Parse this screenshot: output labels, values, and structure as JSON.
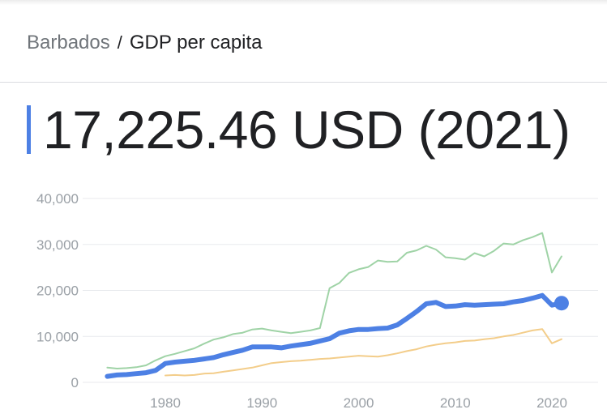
{
  "breadcrumb": {
    "country": "Barbados",
    "separator": "/",
    "metric": "GDP per capita"
  },
  "headline": {
    "value": "17,225.46 USD (2021)"
  },
  "colors": {
    "primary_series": "#4d80e4",
    "upper_series": "#9fd3a6",
    "lower_series": "#f3cd8a",
    "accent": "#4d80e4",
    "grid": "#e8eaed",
    "tick_text": "#9aa0a6"
  },
  "chart_data": {
    "type": "line",
    "title": "",
    "xlabel": "",
    "ylabel": "",
    "xlim": [
      1973,
      2022
    ],
    "ylim": [
      0,
      40000
    ],
    "x_ticks": [
      1980,
      1990,
      2000,
      2010,
      2020
    ],
    "x_tick_labels": [
      "1980",
      "1990",
      "2000",
      "2010",
      "2020"
    ],
    "y_ticks": [
      0,
      10000,
      20000,
      30000,
      40000
    ],
    "y_tick_labels": [
      "0",
      "10,000",
      "20,000",
      "30,000",
      "40,000"
    ],
    "grid": true,
    "legend": "none",
    "series": [
      {
        "role": "upper",
        "x": [
          1974,
          1975,
          1976,
          1977,
          1978,
          1979,
          1980,
          1981,
          1982,
          1983,
          1984,
          1985,
          1986,
          1987,
          1988,
          1989,
          1990,
          1991,
          1992,
          1993,
          1994,
          1995,
          1996,
          1997,
          1998,
          1999,
          2000,
          2001,
          2002,
          2003,
          2004,
          2005,
          2006,
          2007,
          2008,
          2009,
          2010,
          2011,
          2012,
          2013,
          2014,
          2015,
          2016,
          2017,
          2018,
          2019,
          2020,
          2021
        ],
        "values": [
          3200,
          3000,
          3100,
          3300,
          3700,
          4800,
          5700,
          6200,
          6800,
          7400,
          8400,
          9300,
          9800,
          10500,
          10800,
          11500,
          11700,
          11300,
          11000,
          10700,
          11000,
          11300,
          11800,
          20500,
          21600,
          23800,
          24600,
          25100,
          26500,
          26200,
          26300,
          28200,
          28700,
          29700,
          28900,
          27200,
          27000,
          26700,
          28100,
          27400,
          28600,
          30200,
          30000,
          30900,
          31600,
          32500,
          23900,
          27400
        ]
      },
      {
        "role": "primary",
        "x": [
          1974,
          1975,
          1976,
          1977,
          1978,
          1979,
          1980,
          1981,
          1982,
          1983,
          1984,
          1985,
          1986,
          1987,
          1988,
          1989,
          1990,
          1991,
          1992,
          1993,
          1994,
          1995,
          1996,
          1997,
          1998,
          1999,
          2000,
          2001,
          2002,
          2003,
          2004,
          2005,
          2006,
          2007,
          2008,
          2009,
          2010,
          2011,
          2012,
          2013,
          2014,
          2015,
          2016,
          2017,
          2018,
          2019,
          2020,
          2021
        ],
        "values": [
          1300,
          1600,
          1700,
          1900,
          2100,
          2600,
          4100,
          4400,
          4600,
          4800,
          5100,
          5400,
          6000,
          6500,
          7000,
          7700,
          7700,
          7700,
          7500,
          7900,
          8200,
          8500,
          9000,
          9500,
          10700,
          11200,
          11500,
          11500,
          11700,
          11800,
          12500,
          13900,
          15400,
          17100,
          17400,
          16500,
          16600,
          16900,
          16800,
          16900,
          17000,
          17100,
          17500,
          17800,
          18300,
          18900,
          16800,
          17225.46
        ]
      },
      {
        "role": "lower",
        "x": [
          1980,
          1981,
          1982,
          1983,
          1984,
          1985,
          1986,
          1987,
          1988,
          1989,
          1990,
          1991,
          1992,
          1993,
          1994,
          1995,
          1996,
          1997,
          1998,
          1999,
          2000,
          2001,
          2002,
          2003,
          2004,
          2005,
          2006,
          2007,
          2008,
          2009,
          2010,
          2011,
          2012,
          2013,
          2014,
          2015,
          2016,
          2017,
          2018,
          2019,
          2020,
          2021
        ],
        "values": [
          1500,
          1600,
          1500,
          1600,
          1900,
          2000,
          2300,
          2600,
          2900,
          3200,
          3700,
          4200,
          4400,
          4600,
          4700,
          4900,
          5100,
          5200,
          5400,
          5600,
          5800,
          5700,
          5600,
          5900,
          6300,
          6800,
          7200,
          7800,
          8200,
          8500,
          8700,
          9000,
          9100,
          9400,
          9600,
          10000,
          10300,
          10800,
          11300,
          11600,
          8500,
          9400
        ]
      }
    ],
    "highlight": {
      "x": 2021,
      "y": 17225.46
    }
  }
}
